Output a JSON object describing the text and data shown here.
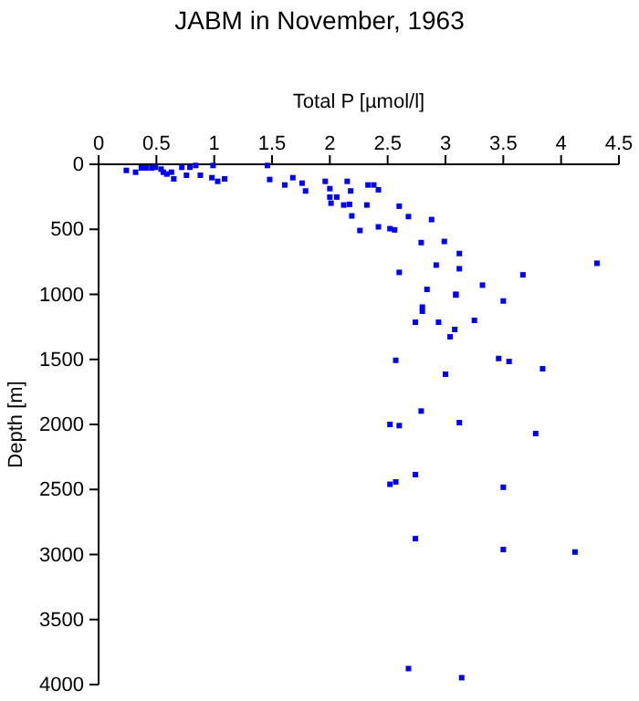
{
  "chart_data": {
    "type": "scatter",
    "title": "JABM in November, 1963",
    "xlabel": "Total P [µmol/l]",
    "ylabel": "Depth [m]",
    "x": [
      0.24,
      0.32,
      0.37,
      0.41,
      0.46,
      0.49,
      0.54,
      0.56,
      0.59,
      0.63,
      0.65,
      0.72,
      0.76,
      0.79,
      0.84,
      0.88,
      0.99,
      0.98,
      1.03,
      1.09,
      1.46,
      1.48,
      1.61,
      1.68,
      1.76,
      1.79,
      1.96,
      2.0,
      2.0,
      2.06,
      2.01,
      2.12,
      2.15,
      2.18,
      2.17,
      2.19,
      2.26,
      2.32,
      2.33,
      2.38,
      2.42,
      2.42,
      2.52,
      2.56,
      2.6,
      2.68,
      2.88,
      2.79,
      2.99,
      3.12,
      3.12,
      2.6,
      2.84,
      3.09,
      2.92,
      3.32,
      3.5,
      3.67,
      4.31,
      2.8,
      3.09,
      2.8,
      2.74,
      2.94,
      3.08,
      3.25,
      3.04,
      2.57,
      3.46,
      3.55,
      3.84,
      3.0,
      2.79,
      2.52,
      2.6,
      3.12,
      3.78,
      2.74,
      2.52,
      2.57,
      3.5,
      2.74,
      3.5,
      4.12,
      2.68,
      3.14
    ],
    "values": [
      47,
      61,
      28,
      28,
      28,
      23,
      37,
      61,
      75,
      61,
      112,
      23,
      84,
      23,
      9,
      84,
      9,
      103,
      131,
      112,
      9,
      117,
      159,
      103,
      145,
      205,
      131,
      187,
      252,
      252,
      299,
      313,
      131,
      205,
      308,
      397,
      509,
      313,
      159,
      159,
      196,
      481,
      495,
      504,
      322,
      402,
      425,
      602,
      593,
      686,
      803,
      831,
      962,
      999,
      775,
      929,
      1051,
      850,
      761,
      1098,
      1005,
      1130,
      1214,
      1214,
      1270,
      1200,
      1326,
      1507,
      1493,
      1516,
      1572,
      1614,
      1897,
      2000,
      2009,
      1986,
      2070,
      2386,
      2460,
      2442,
      2483,
      2878,
      2962,
      2981,
      3877,
      3947
    ],
    "color": "#0000ff",
    "marker": "square",
    "xlim": [
      0,
      4.5
    ],
    "xticks": [
      0,
      0.5,
      1,
      1.5,
      2,
      2.5,
      3,
      3.5,
      4,
      4.5
    ],
    "ylim": [
      4000,
      0
    ],
    "yticks": [
      0,
      500,
      1000,
      1500,
      2000,
      2500,
      3000,
      3500,
      4000
    ],
    "grid": false
  }
}
